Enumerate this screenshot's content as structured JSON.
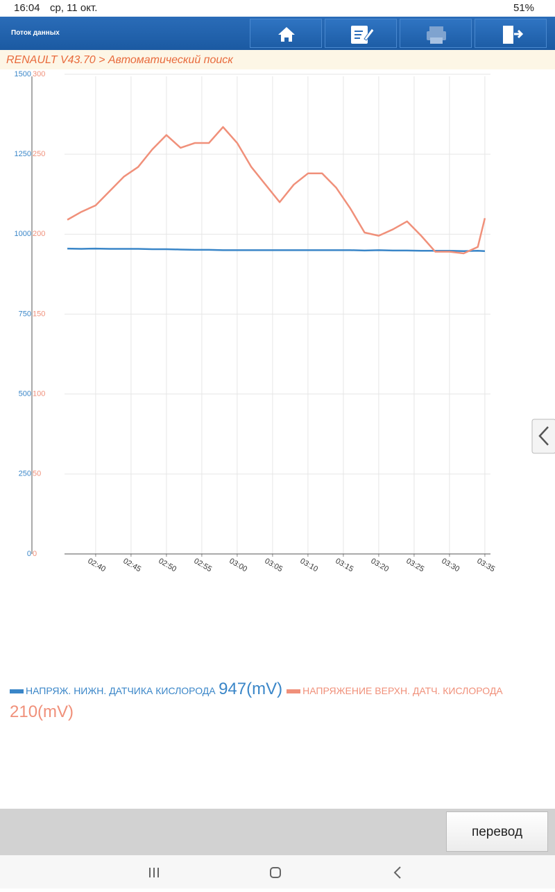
{
  "status_bar": {
    "time": "16:04",
    "date": "ср, 11 окт.",
    "battery": "51%"
  },
  "header": {
    "title": "Поток данных"
  },
  "breadcrumb": "RENAULT V43.70 > Автоматический поиск",
  "chart_data": {
    "type": "line",
    "x": [
      36,
      38,
      40,
      42,
      44,
      46,
      48,
      50,
      52,
      54,
      56,
      58,
      60,
      62,
      64,
      66,
      68,
      70,
      72,
      74,
      76,
      78,
      80,
      82,
      84,
      86,
      88,
      90,
      92,
      94,
      95
    ],
    "xlim": [
      35.6,
      95.4
    ],
    "xticks": [
      {
        "value": 40,
        "label": "02:40"
      },
      {
        "value": 45,
        "label": "02:45"
      },
      {
        "value": 50,
        "label": "02:50"
      },
      {
        "value": 55,
        "label": "02:55"
      },
      {
        "value": 60,
        "label": "03:00"
      },
      {
        "value": 65,
        "label": "03:05"
      },
      {
        "value": 70,
        "label": "03:10"
      },
      {
        "value": 75,
        "label": "03:15"
      },
      {
        "value": 80,
        "label": "03:20"
      },
      {
        "value": 85,
        "label": "03:25"
      },
      {
        "value": 90,
        "label": "03:30"
      },
      {
        "value": 95,
        "label": "03:35"
      }
    ],
    "ylim": [
      0,
      1500
    ],
    "yticks": [
      0,
      250,
      500,
      750,
      1000,
      1250,
      1500
    ],
    "y2lim": [
      0,
      300
    ],
    "y2ticks": [
      0,
      50,
      100,
      150,
      200,
      250,
      300
    ],
    "grid": true,
    "series": [
      {
        "name": "НАПРЯЖ. НИЖН. ДАТЧИКА КИСЛОРОДА",
        "color": "#3a86c8",
        "current_label": "947(mV)",
        "values": [
          955,
          954,
          955,
          954,
          954,
          954,
          953,
          953,
          952,
          951,
          951,
          950,
          950,
          950,
          950,
          950,
          950,
          950,
          950,
          950,
          950,
          949,
          950,
          949,
          949,
          948,
          948,
          948,
          947,
          948,
          947
        ]
      },
      {
        "name": "НАПРЯЖЕНИЕ ВЕРХН. ДАТЧ. КИСЛОРОДА",
        "color": "#f0907a",
        "current_label": "210(mV)",
        "axis": "y2",
        "values": [
          209,
          214,
          218,
          227,
          236,
          242,
          253,
          262,
          254,
          257,
          257,
          267,
          257,
          242,
          231,
          220,
          231,
          238,
          238,
          229,
          216,
          201,
          199,
          203,
          208,
          199,
          189,
          189,
          188,
          192,
          210
        ]
      }
    ]
  },
  "button": "перевод"
}
